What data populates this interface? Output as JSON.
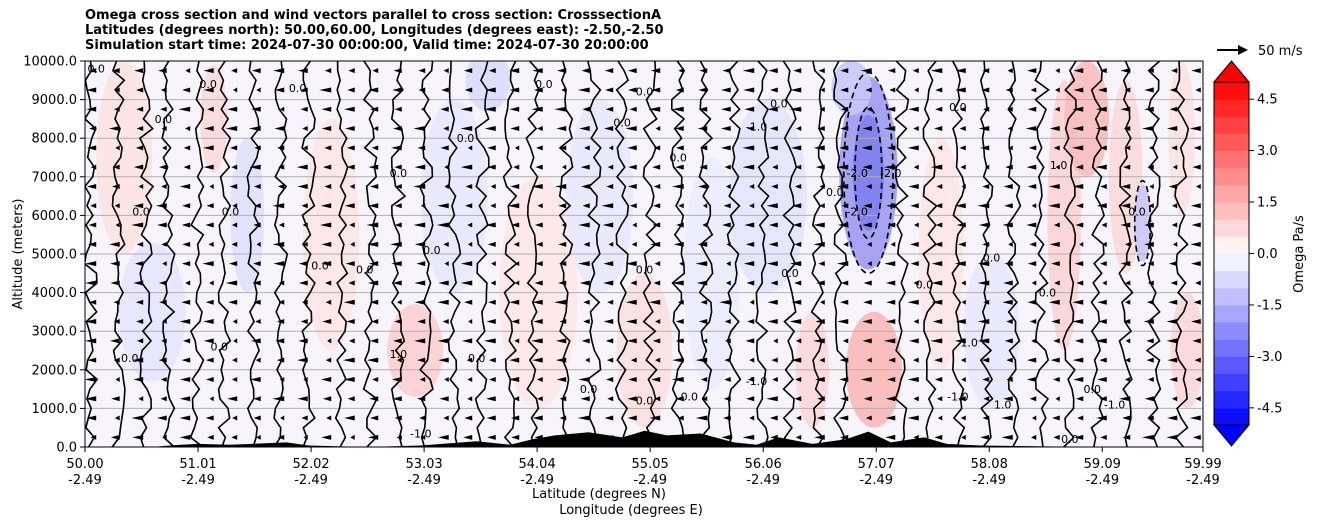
{
  "title": {
    "line1": "Omega cross section and wind vectors parallel to cross section: CrosssectionA",
    "line2": "Latitudes (degrees north): 50.00,60.00, Longitudes (degrees east): -2.50,-2.50",
    "line3": "Simulation start time: 2024-07-30 00:00:00, Valid time: 2024-07-30 20:00:00"
  },
  "chart_data": {
    "type": "heatmap",
    "description_kind": "filled contour cross section with wind vectors",
    "ylabel": "Altitude (meters)",
    "xlabel_lat": "Latitude (degrees N)",
    "xlabel_lon": "Longitude (degrees E)",
    "ylim": [
      0,
      10000
    ],
    "yticks": [
      "0.0",
      "1000.0",
      "2000.0",
      "3000.0",
      "4000.0",
      "5000.0",
      "6000.0",
      "7000.0",
      "8000.0",
      "9000.0",
      "10000.0"
    ],
    "ytick_values": [
      0,
      1000,
      2000,
      3000,
      4000,
      5000,
      6000,
      7000,
      8000,
      9000,
      10000
    ],
    "xlim": [
      50.0,
      59.99
    ],
    "xticks_lat": [
      "50.00",
      "51.01",
      "52.02",
      "53.03",
      "54.04",
      "55.05",
      "56.06",
      "57.07",
      "58.08",
      "59.09",
      "59.99"
    ],
    "xtick_values": [
      50.0,
      51.01,
      52.02,
      53.03,
      54.04,
      55.05,
      56.06,
      57.07,
      58.08,
      59.09,
      59.99
    ],
    "xticks_lon": [
      "-2.49",
      "-2.49",
      "-2.49",
      "-2.49",
      "-2.49",
      "-2.49",
      "-2.49",
      "-2.49",
      "-2.49",
      "-2.49",
      "-2.49"
    ],
    "grid": "horizontal",
    "colorbar": {
      "label": "Omega Pa/s",
      "range": [
        -5.0,
        5.0
      ],
      "extend": "both",
      "ticks": [
        "-4.5",
        "-3.0",
        "-1.5",
        "0.0",
        "1.5",
        "3.0",
        "4.5"
      ],
      "tick_values": [
        -4.5,
        -3.0,
        -1.5,
        0.0,
        1.5,
        3.0,
        4.5
      ],
      "negative_color": "#0000ff",
      "positive_color": "#ff0000"
    },
    "quiver_key": {
      "label": "50 m/s",
      "value": 50
    },
    "contour_labels": [
      {
        "text": "0.0",
        "x": 50.1,
        "y": 9700
      },
      {
        "text": "0.0",
        "x": 50.7,
        "y": 8400
      },
      {
        "text": "0.0",
        "x": 50.5,
        "y": 6000
      },
      {
        "text": "0.0",
        "x": 51.1,
        "y": 9300
      },
      {
        "text": "0.0",
        "x": 51.9,
        "y": 9200
      },
      {
        "text": "0.0",
        "x": 51.3,
        "y": 6000
      },
      {
        "text": "0.0",
        "x": 52.1,
        "y": 4600
      },
      {
        "text": "0.0",
        "x": 52.5,
        "y": 4500
      },
      {
        "text": "0.0",
        "x": 52.8,
        "y": 7000
      },
      {
        "text": "0.0",
        "x": 53.1,
        "y": 5000
      },
      {
        "text": "0.0",
        "x": 53.4,
        "y": 7900
      },
      {
        "text": "0.0",
        "x": 54.1,
        "y": 9300
      },
      {
        "text": "0.0",
        "x": 54.8,
        "y": 8300
      },
      {
        "text": "0.0",
        "x": 55.0,
        "y": 9100
      },
      {
        "text": "0.0",
        "x": 55.3,
        "y": 7400
      },
      {
        "text": "0.0",
        "x": 55.0,
        "y": 4500
      },
      {
        "text": "0.0",
        "x": 56.2,
        "y": 8800
      },
      {
        "text": "0.0",
        "x": 56.3,
        "y": 4400
      },
      {
        "text": "0.0",
        "x": 57.8,
        "y": 8700
      },
      {
        "text": "0.0",
        "x": 58.1,
        "y": 4800
      },
      {
        "text": "0.0",
        "x": 57.5,
        "y": 4100
      },
      {
        "text": "0.0",
        "x": 58.6,
        "y": 3900
      },
      {
        "text": "0.0",
        "x": 50.4,
        "y": 2200
      },
      {
        "text": "0.0",
        "x": 51.2,
        "y": 2500
      },
      {
        "text": "0.0",
        "x": 53.5,
        "y": 2200
      },
      {
        "text": "0.0",
        "x": 54.5,
        "y": 1400
      },
      {
        "text": "0.0",
        "x": 55.0,
        "y": 1100
      },
      {
        "text": "0.0",
        "x": 55.4,
        "y": 1200
      },
      {
        "text": "0.0",
        "x": 56.7,
        "y": 6500
      },
      {
        "text": "0.0",
        "x": 59.0,
        "y": 1400
      },
      {
        "text": "0.0",
        "x": 58.8,
        "y": 100
      },
      {
        "text": "1.0",
        "x": 52.8,
        "y": 2300
      },
      {
        "text": "1.0",
        "x": 58.7,
        "y": 7200
      },
      {
        "text": "1.0",
        "x": 58.2,
        "y": 1000
      },
      {
        "text": "1.0",
        "x": 57.9,
        "y": 2600
      },
      {
        "text": "-1.0",
        "x": 56.0,
        "y": 8200
      },
      {
        "text": "-1.0",
        "x": 57.8,
        "y": 1200
      },
      {
        "text": "-1.0",
        "x": 53.0,
        "y": 250
      },
      {
        "text": "-1.0",
        "x": 56.0,
        "y": 1600
      },
      {
        "text": "-1.0",
        "x": 59.2,
        "y": 1000
      },
      {
        "text": "-2.0",
        "x": 56.9,
        "y": 7000
      },
      {
        "text": "-2.0",
        "x": 57.2,
        "y": 7000
      },
      {
        "text": "-2.0",
        "x": 56.9,
        "y": 6000
      },
      {
        "text": "0.0",
        "x": 59.4,
        "y": 6000
      }
    ]
  }
}
